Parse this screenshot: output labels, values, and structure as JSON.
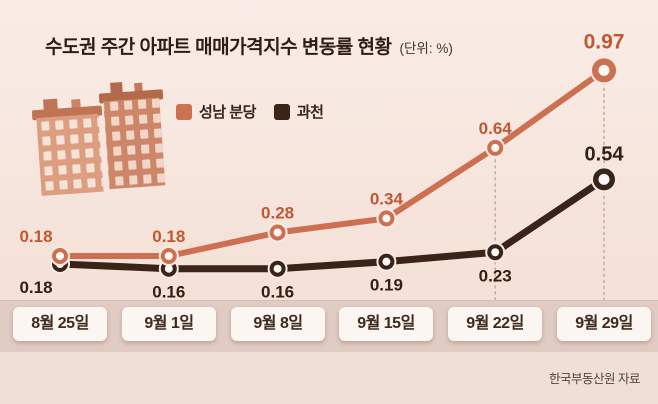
{
  "header": {
    "title": "수도권 주간 아파트 매매가격지수 변동률 현황",
    "unit_label": "(단위: %)"
  },
  "chart_data": {
    "type": "line",
    "title": "수도권 주간 아파트 매매가격지수 변동률 현황",
    "unit": "%",
    "categories": [
      "8월 25일",
      "9월 1일",
      "9월 8일",
      "9월 15일",
      "9월 22일",
      "9월 29일"
    ],
    "series": [
      {
        "name": "성남 분당",
        "color": "#cd7052",
        "label_color": "#c25832",
        "values": [
          0.18,
          0.18,
          0.28,
          0.34,
          0.64,
          0.97
        ]
      },
      {
        "name": "과천",
        "color": "#3a2318",
        "label_color": "#332014",
        "values": [
          0.18,
          0.16,
          0.16,
          0.19,
          0.23,
          0.54
        ]
      }
    ],
    "ylim": [
      0.1,
      1.05
    ],
    "legend_position": "top-left",
    "grid": false,
    "guide_columns": [
      4,
      5
    ]
  },
  "source": "한국부동산원 자료",
  "colors": {
    "background": "#f7e9e1",
    "axis_strip": "#e0ccc3",
    "guide_dotted": "#c3aba0"
  }
}
